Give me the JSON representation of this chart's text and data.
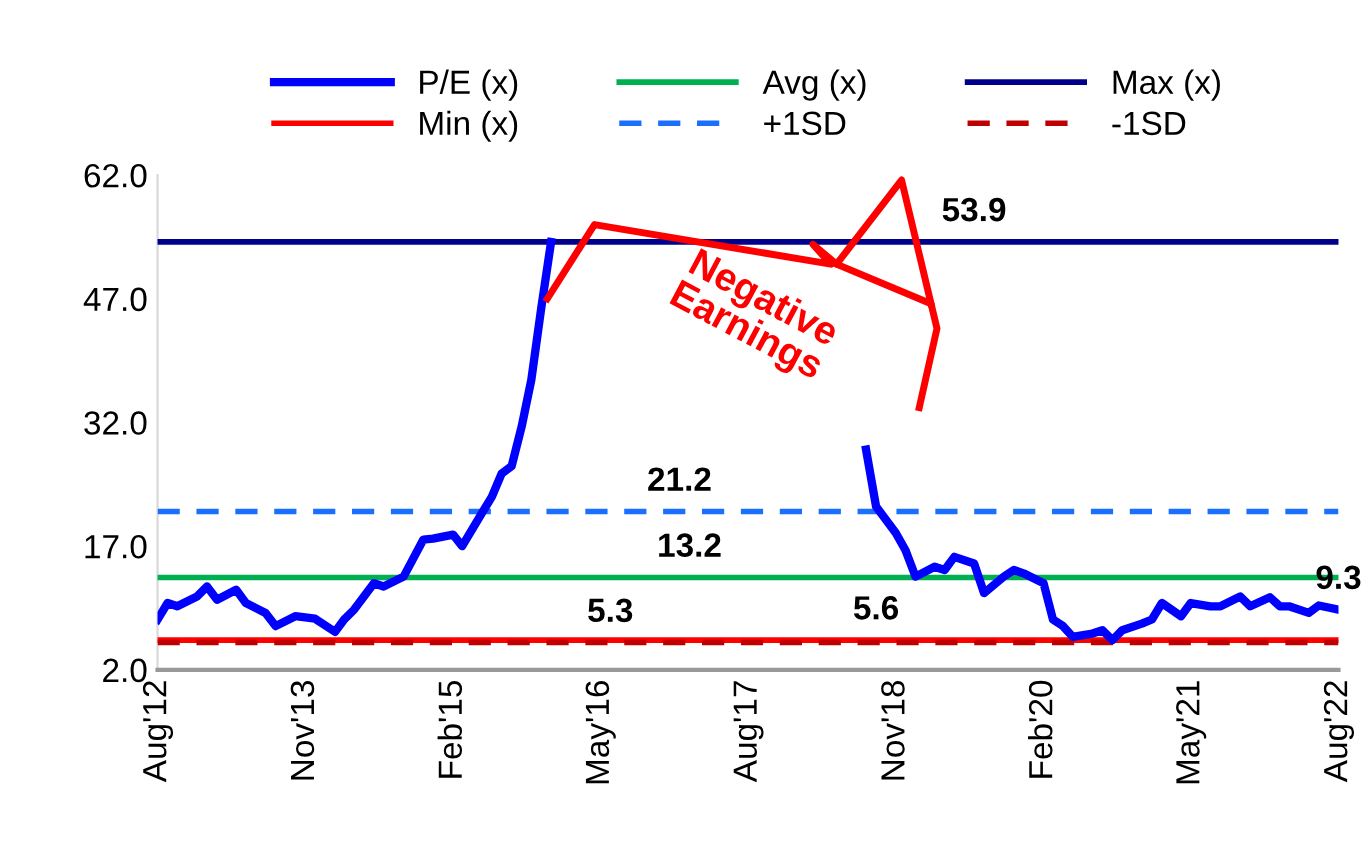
{
  "chart_data": {
    "type": "line",
    "series": [
      {
        "name": "P/E (x)",
        "color": "#0000ff",
        "x": [
          "2012-08",
          "2012-09",
          "2012-10",
          "2012-12",
          "2013-01",
          "2013-02",
          "2013-04",
          "2013-05",
          "2013-07",
          "2013-08",
          "2013-10",
          "2013-12",
          "2014-02",
          "2014-03",
          "2014-04",
          "2014-06",
          "2014-07",
          "2014-09",
          "2014-11",
          "2014-12",
          "2015-02",
          "2015-03",
          "2015-05",
          "2015-06",
          "2015-07",
          "2015-08",
          "2015-09",
          "2015-10",
          "2015-11",
          "2015-12",
          "2016-01",
          "2018-08",
          "2018-09",
          "2018-11",
          "2018-12",
          "2019-01",
          "2019-03",
          "2019-04",
          "2019-05",
          "2019-07",
          "2019-08",
          "2019-10",
          "2019-11",
          "2019-12",
          "2020-02",
          "2020-03",
          "2020-04",
          "2020-05",
          "2020-07",
          "2020-08",
          "2020-09",
          "2020-10",
          "2020-12",
          "2021-01",
          "2021-02",
          "2021-04",
          "2021-05",
          "2021-07",
          "2021-08",
          "2021-10",
          "2021-11",
          "2022-01",
          "2022-02",
          "2022-03",
          "2022-05",
          "2022-06",
          "2022-08"
        ],
        "values": [
          8.1,
          10.1,
          9.7,
          10.9,
          12.1,
          10.5,
          11.7,
          10.1,
          8.9,
          7.3,
          8.5,
          8.2,
          6.6,
          8.1,
          9.3,
          12.5,
          12.1,
          13.3,
          17.8,
          17.9,
          18.4,
          17.0,
          21.0,
          23.0,
          25.8,
          26.7,
          31.5,
          37.2,
          46.0,
          53.9,
          null,
          28.7,
          21.8,
          18.6,
          16.5,
          13.3,
          14.5,
          14.1,
          15.7,
          14.9,
          11.3,
          13.3,
          14.1,
          13.7,
          12.5,
          8.1,
          7.3,
          6.0,
          6.4,
          6.8,
          5.6,
          6.8,
          7.6,
          8.1,
          10.1,
          8.5,
          10.1,
          9.7,
          9.7,
          10.9,
          9.7,
          10.8,
          9.7,
          9.7,
          8.9,
          9.8,
          9.3
        ],
        "value_labels": [
          null,
          null,
          null,
          null,
          null,
          null,
          null,
          null,
          null,
          null,
          null,
          null,
          null,
          null,
          null,
          null,
          null,
          null,
          null,
          null,
          null,
          null,
          null,
          null,
          null,
          null,
          null,
          null,
          null,
          null,
          null,
          null,
          null,
          null,
          null,
          null,
          null,
          null,
          null,
          null,
          null,
          null,
          null,
          null,
          null,
          null,
          null,
          null,
          null,
          null,
          null,
          null,
          null,
          null,
          null,
          null,
          null,
          null,
          null,
          null,
          null,
          null,
          null,
          null,
          null,
          null,
          "9.3"
        ]
      },
      {
        "name": "Avg (x)",
        "color": "#00b050",
        "x": [
          "2012-08",
          "2017-02",
          "2022-08"
        ],
        "values": [
          13.2,
          13.2,
          13.2
        ],
        "value_labels": [
          null,
          "13.2",
          null
        ]
      },
      {
        "name": "Max (x)",
        "color": "#00008b",
        "x": [
          "2012-08",
          "2019-07",
          "2022-08"
        ],
        "values": [
          53.9,
          53.9,
          53.9
        ],
        "value_labels": [
          null,
          "53.9",
          null
        ]
      },
      {
        "name": "Min (x)",
        "color": "#ff0000",
        "x": [
          "2012-08",
          "2018-09",
          "2022-08"
        ],
        "values": [
          5.6,
          5.6,
          5.6
        ],
        "value_labels": [
          null,
          "5.6",
          null
        ]
      },
      {
        "name": "+1SD",
        "color": "#1a6fff",
        "line_style": "dashed",
        "x": [
          "2012-08",
          "2017-01",
          "2022-08"
        ],
        "values": [
          21.2,
          21.2,
          21.2
        ],
        "value_labels": [
          null,
          "21.2",
          null
        ]
      },
      {
        "name": "-1SD",
        "color": "#c00000",
        "line_style": "dashed",
        "x": [
          "2012-08",
          "2016-06",
          "2022-08"
        ],
        "values": [
          5.3,
          5.3,
          5.3
        ],
        "value_labels": [
          null,
          "5.3",
          null
        ]
      }
    ],
    "xlim": [
      "2012-08",
      "2022-08"
    ],
    "xticks": [
      {
        "value": "2012-08",
        "label": "Aug'12"
      },
      {
        "value": "2013-11",
        "label": "Nov'13"
      },
      {
        "value": "2015-02",
        "label": "Feb'15"
      },
      {
        "value": "2016-05",
        "label": "May'16"
      },
      {
        "value": "2017-08",
        "label": "Aug'17"
      },
      {
        "value": "2018-11",
        "label": "Nov'18"
      },
      {
        "value": "2020-02",
        "label": "Feb'20"
      },
      {
        "value": "2021-05",
        "label": "May'21"
      },
      {
        "value": "2022-08",
        "label": "Aug'22"
      }
    ],
    "ylim": [
      2,
      62
    ],
    "yticks": [
      {
        "value": 2,
        "label": "2.0"
      },
      {
        "value": 17,
        "label": "17.0"
      },
      {
        "value": 32,
        "label": "32.0"
      },
      {
        "value": 47,
        "label": "47.0"
      },
      {
        "value": 62,
        "label": "62.0"
      }
    ],
    "annotations": [
      "Negative Earnings"
    ],
    "legend": "top",
    "grid": false,
    "marker": "none",
    "line_style": "solid"
  }
}
